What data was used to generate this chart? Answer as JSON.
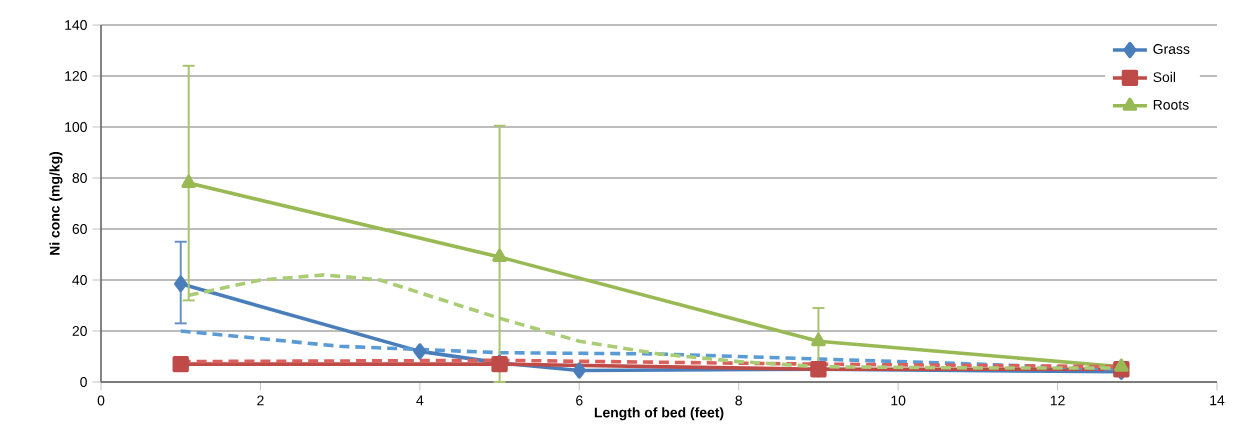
{
  "chart_data": {
    "type": "line",
    "xlabel": "Length of bed (feet)",
    "ylabel": "Ni conc (mg/kg)",
    "xlim": [
      0,
      14
    ],
    "xticks": [
      0,
      2,
      4,
      6,
      8,
      10,
      12,
      14
    ],
    "ylim": [
      0,
      140
    ],
    "yticks": [
      0,
      20,
      40,
      60,
      80,
      100,
      120,
      140
    ],
    "grid": "y",
    "legend": "top right",
    "series": [
      {
        "name": "Grass",
        "color": "#4a7ebb",
        "marker": "diamond",
        "line_style": "solid",
        "x": [
          1,
          4,
          5,
          6,
          9,
          12.8
        ],
        "values": [
          38.5,
          12,
          7.5,
          4.5,
          5,
          4
        ],
        "errors": [
          [
            23,
            55
          ],
          null,
          null,
          null,
          null,
          null
        ]
      },
      {
        "name": "Soil",
        "color": "#be4b48",
        "marker": "square",
        "line_style": "solid",
        "x": [
          1,
          5,
          9,
          12.8
        ],
        "values": [
          7,
          7,
          5,
          5
        ]
      },
      {
        "name": "Roots",
        "color": "#98b954",
        "marker": "triangle",
        "line_style": "solid",
        "x": [
          1.1,
          5,
          9,
          12.8
        ],
        "values": [
          78,
          49,
          16,
          6
        ],
        "errors": [
          [
            32,
            124
          ],
          [
            0,
            100.5
          ],
          [
            3,
            29
          ],
          null
        ]
      },
      {
        "color": "#5b9bd5",
        "marker": "none",
        "line_style": "dashed",
        "x": [
          1,
          3,
          5,
          7,
          9,
          11,
          12.8
        ],
        "values": [
          20,
          14,
          11.5,
          11,
          9,
          7,
          5
        ]
      },
      {
        "color": "#d9605c",
        "marker": "none",
        "line_style": "dashed",
        "x": [
          1,
          5,
          9,
          12.8
        ],
        "values": [
          8,
          8.5,
          7,
          6
        ]
      },
      {
        "color": "#a9cc74",
        "marker": "none",
        "line_style": "dashed",
        "x": [
          1.1,
          2,
          2.8,
          3.5,
          5,
          6,
          7,
          8,
          9,
          11,
          12.8
        ],
        "values": [
          34,
          40,
          42,
          40,
          25,
          16,
          11,
          8,
          6,
          5.5,
          5.5
        ]
      }
    ]
  }
}
